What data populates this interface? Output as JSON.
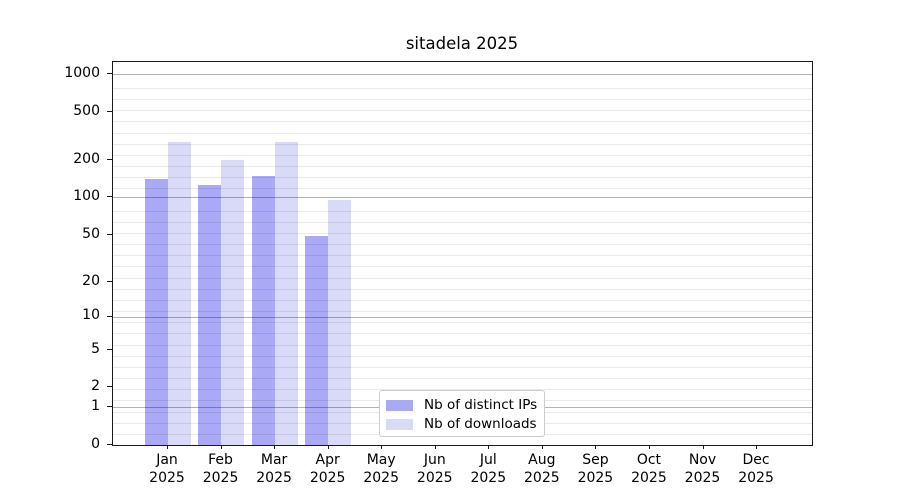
{
  "title": "sitadela 2025",
  "colors": {
    "ips": "#a9a9f5",
    "downloads": "#d9d9f8",
    "spine": "#1a1a1a"
  },
  "y_axis": {
    "tick_labels": [
      "0",
      "1",
      "2",
      "5",
      "10",
      "20",
      "50",
      "100",
      "200",
      "500",
      "1000"
    ],
    "tick_values": [
      0,
      1,
      2,
      5,
      10,
      20,
      50,
      100,
      200,
      500,
      1000
    ]
  },
  "x_axis": {
    "year": "2025",
    "months": [
      "Jan",
      "Feb",
      "Mar",
      "Apr",
      "May",
      "Jun",
      "Jul",
      "Aug",
      "Sep",
      "Oct",
      "Nov",
      "Dec"
    ]
  },
  "legend": {
    "entries": [
      {
        "label": "Nb of distinct IPs",
        "series": "ips"
      },
      {
        "label": "Nb of downloads",
        "series": "downloads"
      }
    ]
  },
  "chart_data": {
    "type": "bar",
    "title": "sitadela 2025",
    "categories": [
      "Jan 2025",
      "Feb 2025",
      "Mar 2025",
      "Apr 2025",
      "May 2025",
      "Jun 2025",
      "Jul 2025",
      "Aug 2025",
      "Sep 2025",
      "Oct 2025",
      "Nov 2025",
      "Dec 2025"
    ],
    "series": [
      {
        "name": "Nb of distinct IPs",
        "color": "#a9a9f5",
        "values": [
          140,
          125,
          147,
          49,
          0,
          0,
          0,
          0,
          0,
          0,
          0,
          0
        ]
      },
      {
        "name": "Nb of downloads",
        "color": "#d9d9f8",
        "values": [
          280,
          200,
          280,
          94,
          0,
          0,
          0,
          0,
          0,
          0,
          0,
          0
        ]
      }
    ],
    "xlabel": "",
    "ylabel": "",
    "yscale": "symlog",
    "y_ticks": [
      0,
      1,
      2,
      5,
      10,
      20,
      50,
      100,
      200,
      500,
      1000
    ],
    "ylim": [
      0,
      1200
    ],
    "grid": true,
    "grid_over_bars": true,
    "legend_position": "lower center"
  }
}
